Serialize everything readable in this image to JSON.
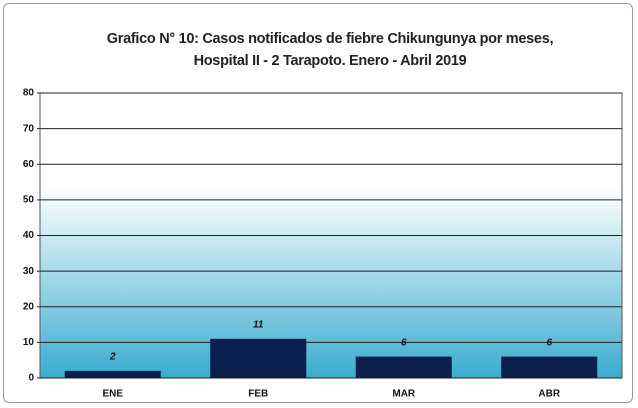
{
  "chart_data": {
    "type": "bar",
    "title": "Grafico N° 10: Casos notificados de fiebre Chikungunya por meses, Hospital II - 2 Tarapoto. Enero - Abril 2019",
    "categories": [
      "ENE",
      "FEB",
      "MAR",
      "ABR"
    ],
    "values": [
      2,
      11,
      6,
      6
    ],
    "color": "#0b1f4f",
    "ylim": [
      0,
      80
    ],
    "yticks": [
      0,
      10,
      20,
      30,
      40,
      50,
      60,
      70,
      80
    ],
    "grid": true
  }
}
